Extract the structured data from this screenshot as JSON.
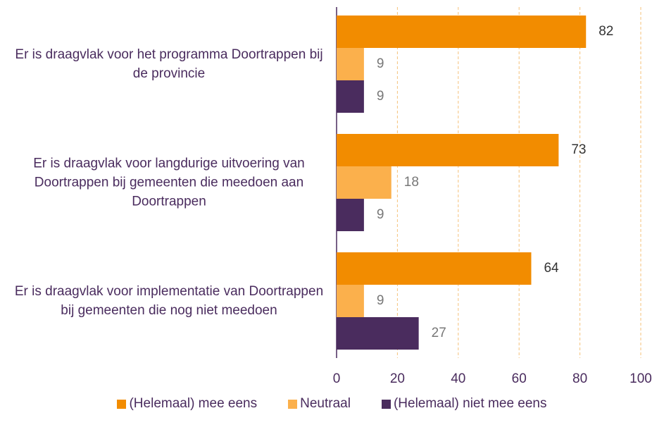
{
  "chart_data": {
    "type": "bar",
    "orientation": "horizontal",
    "categories": [
      "Er is draagvlak voor het programma Doortrappen bij de provincie",
      "Er is draagvlak voor langdurige uitvoering van Doortrappen bij gemeenten die meedoen aan Doortrappen",
      "Er is draagvlak voor implementatie van Doortrappen bij gemeenten die nog niet meedoen"
    ],
    "series": [
      {
        "name": "(Helemaal) mee eens",
        "color": "#f28c00",
        "values": [
          82,
          73,
          64
        ]
      },
      {
        "name": "Neutraal",
        "color": "#fbb04c",
        "values": [
          9,
          18,
          9
        ]
      },
      {
        "name": "(Helemaal) niet mee eens",
        "color": "#4a2c5e",
        "values": [
          9,
          9,
          27
        ]
      }
    ],
    "xlim": [
      0,
      100
    ],
    "xticks": [
      0,
      20,
      40,
      60,
      80,
      100
    ],
    "grid": true,
    "legend": "bottom"
  }
}
